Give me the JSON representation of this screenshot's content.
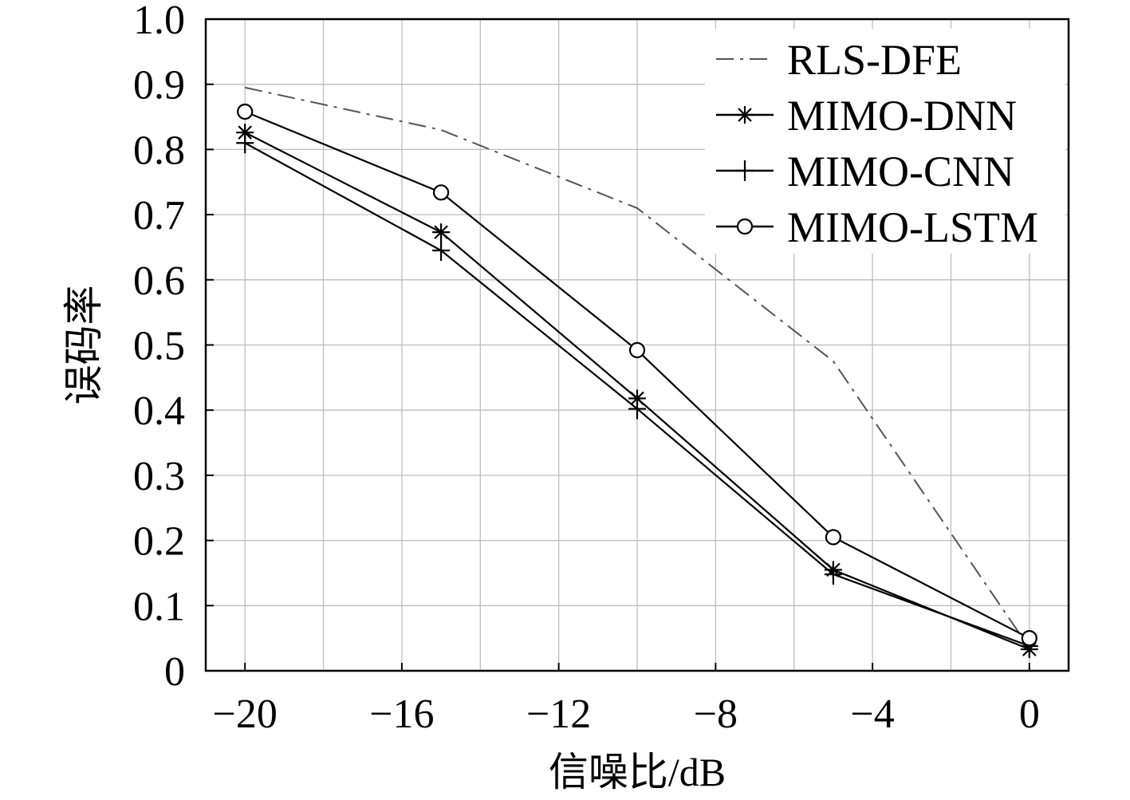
{
  "chart_data": {
    "type": "line",
    "title": "",
    "xlabel": "信噪比/dB",
    "ylabel": "误码率",
    "xlim": [
      -21,
      1
    ],
    "ylim": [
      0,
      1.0
    ],
    "x_ticks": [
      -20,
      -16,
      -12,
      -8,
      -4,
      0
    ],
    "x_tick_labels": [
      "−20",
      "−16",
      "−12",
      "−8",
      "−4",
      "0"
    ],
    "y_ticks": [
      0,
      0.1,
      0.2,
      0.3,
      0.4,
      0.5,
      0.6,
      0.7,
      0.8,
      0.9,
      1.0
    ],
    "y_tick_labels": [
      "0",
      "0.1",
      "0.2",
      "0.3",
      "0.4",
      "0.5",
      "0.6",
      "0.7",
      "0.8",
      "0.9",
      "1.0"
    ],
    "grid": true,
    "legend_position": "top-right",
    "x": [
      -20,
      -15,
      -10,
      -5,
      0
    ],
    "series": [
      {
        "name": "RLS-DFE",
        "values": [
          0.895,
          0.83,
          0.71,
          0.475,
          0.035
        ],
        "style": "dashdot",
        "marker": "none",
        "color": "#555555"
      },
      {
        "name": "MIMO-DNN",
        "values": [
          0.826,
          0.673,
          0.418,
          0.155,
          0.033
        ],
        "style": "solid",
        "marker": "star",
        "color": "#000000"
      },
      {
        "name": "MIMO-CNN",
        "values": [
          0.81,
          0.645,
          0.402,
          0.148,
          0.038
        ],
        "style": "solid",
        "marker": "plus",
        "color": "#000000"
      },
      {
        "name": "MIMO-LSTM",
        "values": [
          0.858,
          0.734,
          0.492,
          0.205,
          0.05
        ],
        "style": "solid",
        "marker": "circle",
        "color": "#000000"
      }
    ]
  }
}
